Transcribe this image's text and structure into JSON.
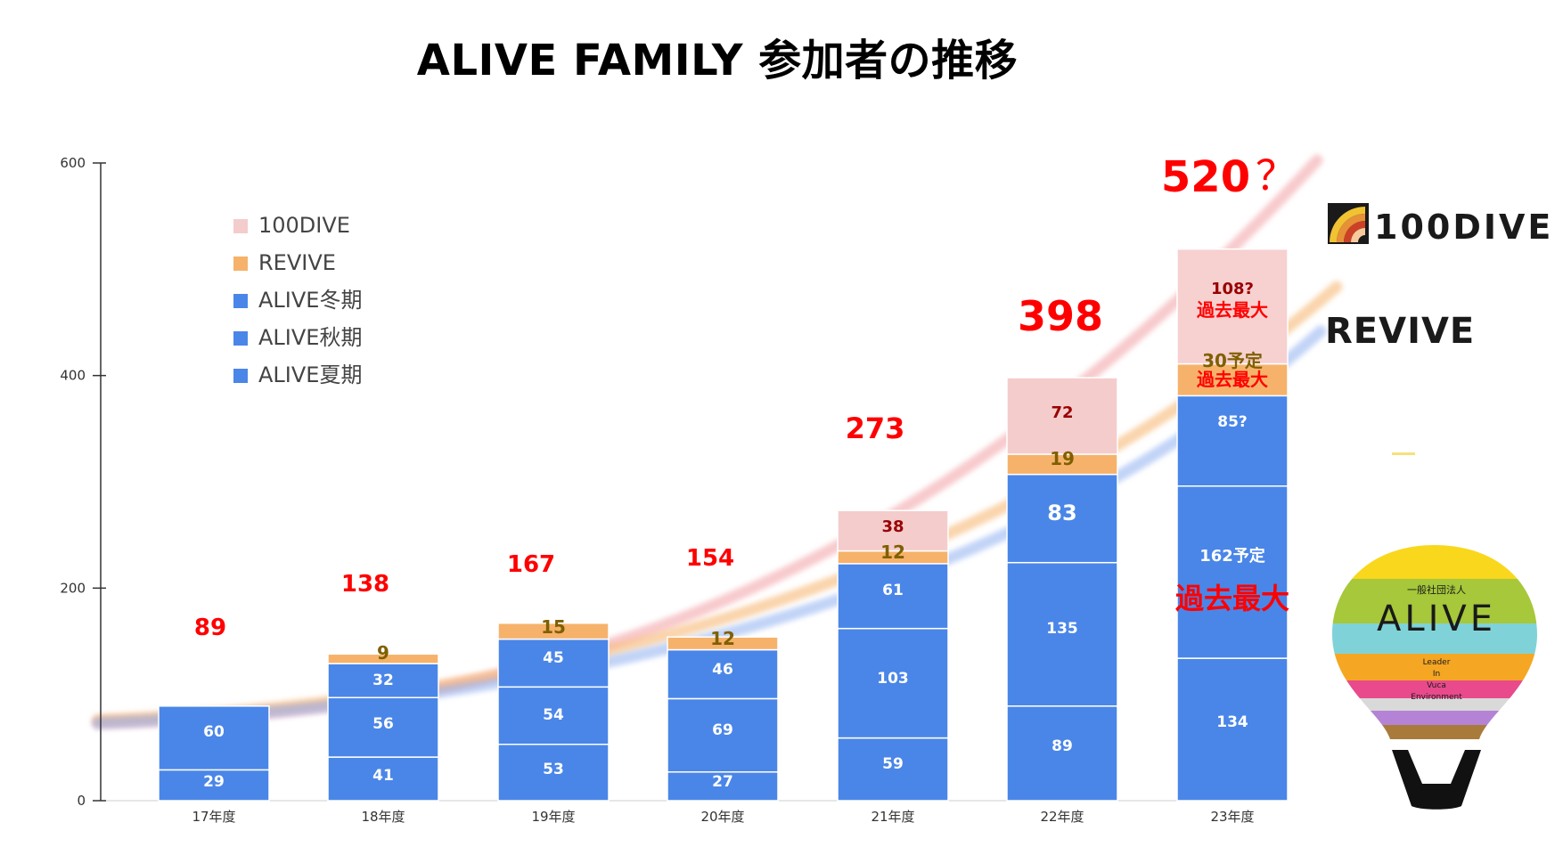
{
  "chart_data": {
    "type": "bar",
    "title": "ALIVE FAMILY 参加者の推移",
    "xlabel": "",
    "ylabel": "",
    "ylim": [
      0,
      600
    ],
    "yticks": [
      "0",
      "200",
      "400",
      "600"
    ],
    "grid": false,
    "legend_position": "top-left",
    "categories": [
      "17年度",
      "18年度",
      "19年度",
      "20年度",
      "21年度",
      "22年度",
      "23年度"
    ],
    "series": [
      {
        "name": "ALIVE夏期",
        "color": "#4a86e8",
        "values": [
          29,
          41,
          53,
          27,
          59,
          89,
          134
        ],
        "labels": [
          "29",
          "41",
          "53",
          "27",
          "59",
          "89",
          "134"
        ]
      },
      {
        "name": "ALIVE秋期",
        "color": "#4a86e8",
        "values": [
          60,
          56,
          54,
          69,
          103,
          135,
          162
        ],
        "labels": [
          "60",
          "56",
          "54",
          "69",
          "103",
          "135",
          "162予定"
        ]
      },
      {
        "name": "ALIVE冬期",
        "color": "#4a86e8",
        "values": [
          0,
          32,
          45,
          46,
          61,
          83,
          85
        ],
        "labels": [
          "",
          "32",
          "45",
          "46",
          "61",
          "83",
          "85?"
        ]
      },
      {
        "name": "REVIVE",
        "color": "#f6b26b",
        "values": [
          0,
          9,
          15,
          12,
          12,
          19,
          30
        ],
        "labels": [
          "",
          "9",
          "15",
          "12",
          "12",
          "19",
          "30予定"
        ]
      },
      {
        "name": "100DIVE",
        "color": "#f4cccc",
        "values": [
          0,
          0,
          0,
          0,
          38,
          72,
          108
        ],
        "labels": [
          "",
          "",
          "",
          "",
          "38",
          "72",
          "108?"
        ]
      }
    ],
    "totals": [
      "89",
      "138",
      "167",
      "154",
      "273",
      "398",
      "520"
    ],
    "total_suffix_last": "？",
    "record_note": "過去最大",
    "legend_order": [
      "100DIVE",
      "REVIVE",
      "ALIVE冬期",
      "ALIVE秋期",
      "ALIVE夏期"
    ]
  },
  "logos": {
    "dive": "100DIVE",
    "revive": "REVIVE",
    "alive_top": "一般社団法人",
    "alive_name": "ALIVE",
    "alive_lines": [
      "Leader",
      "In",
      "Vuca",
      "Environment"
    ]
  },
  "colors": {
    "total_label": "#ff0000",
    "inner_label": "#ffffff",
    "revive_label": "#7f6000",
    "dive_label": "#990000",
    "record_note": "#ff0000"
  }
}
